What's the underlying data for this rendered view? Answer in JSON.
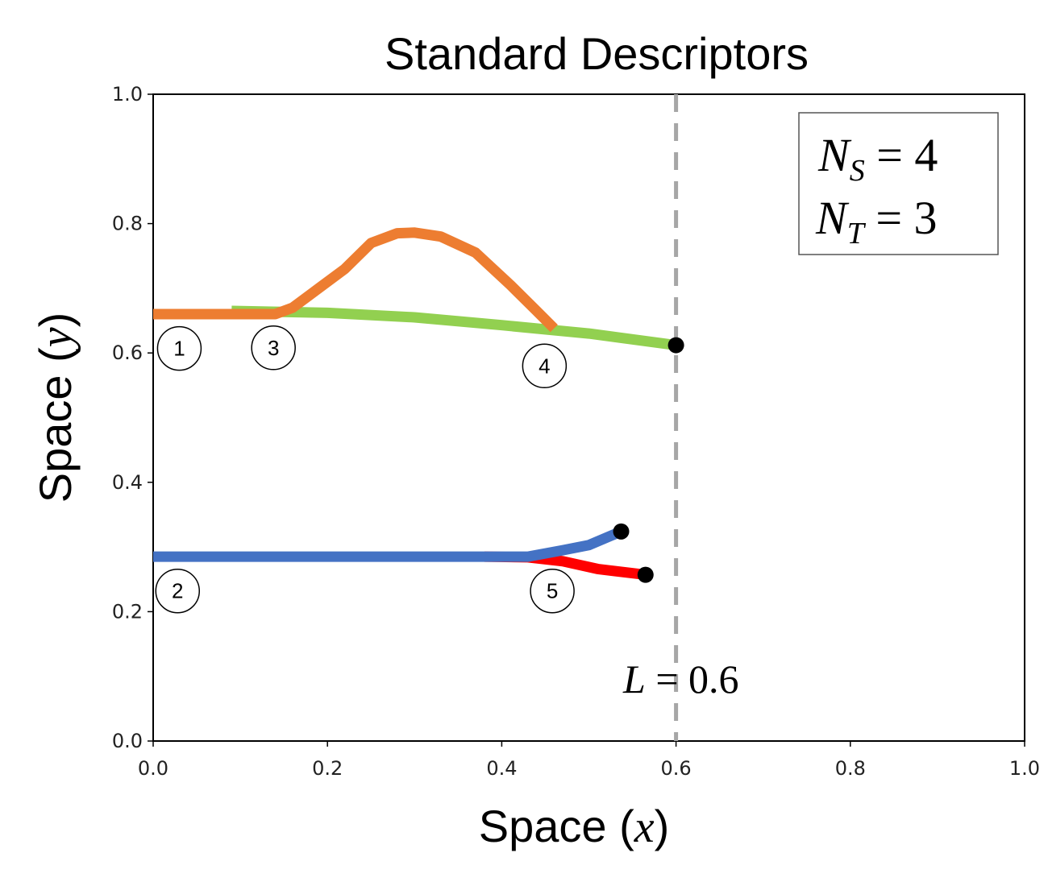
{
  "chart_data": {
    "type": "line",
    "title": "Standard Descriptors",
    "xlabel_text": "Space (",
    "xlabel_var": "x",
    "xlabel_close": ")",
    "ylabel_text": "Space (",
    "ylabel_var": "y",
    "ylabel_close": ")",
    "xlim": [
      0,
      1
    ],
    "ylim": [
      0,
      1
    ],
    "xticks": [
      "0.0",
      "0.2",
      "0.4",
      "0.6",
      "0.8",
      "1.0"
    ],
    "yticks": [
      "0.0",
      "0.2",
      "0.4",
      "0.6",
      "0.8",
      "1.0"
    ],
    "grid": false,
    "series": [
      {
        "color": "#92d050",
        "points": [
          [
            0.09,
            0.665
          ],
          [
            0.2,
            0.662
          ],
          [
            0.3,
            0.655
          ],
          [
            0.4,
            0.643
          ],
          [
            0.5,
            0.63
          ],
          [
            0.6,
            0.612
          ]
        ]
      },
      {
        "color": "#ed7d31",
        "points": [
          [
            0.0,
            0.66
          ],
          [
            0.14,
            0.66
          ],
          [
            0.16,
            0.67
          ],
          [
            0.19,
            0.7
          ],
          [
            0.22,
            0.73
          ],
          [
            0.25,
            0.77
          ],
          [
            0.28,
            0.785
          ],
          [
            0.3,
            0.786
          ],
          [
            0.33,
            0.78
          ],
          [
            0.37,
            0.755
          ],
          [
            0.41,
            0.705
          ],
          [
            0.44,
            0.665
          ],
          [
            0.46,
            0.638
          ]
        ]
      },
      {
        "color": "#ff0000",
        "points": [
          [
            0.38,
            0.285
          ],
          [
            0.43,
            0.284
          ],
          [
            0.47,
            0.278
          ],
          [
            0.51,
            0.266
          ],
          [
            0.565,
            0.257
          ]
        ]
      },
      {
        "color": "#4472c4",
        "points": [
          [
            0.0,
            0.285
          ],
          [
            0.3,
            0.285
          ],
          [
            0.38,
            0.285
          ],
          [
            0.43,
            0.285
          ],
          [
            0.47,
            0.295
          ],
          [
            0.5,
            0.303
          ],
          [
            0.537,
            0.324
          ]
        ]
      }
    ],
    "endpoints": [
      [
        0.6,
        0.612
      ],
      [
        0.537,
        0.324
      ],
      [
        0.565,
        0.257
      ]
    ],
    "markers": [
      {
        "label": "1",
        "x": 0.03,
        "y": 0.607
      },
      {
        "label": "2",
        "x": 0.028,
        "y": 0.232
      },
      {
        "label": "3",
        "x": 0.138,
        "y": 0.608
      },
      {
        "label": "4",
        "x": 0.449,
        "y": 0.58
      },
      {
        "label": "5",
        "x": 0.458,
        "y": 0.232
      }
    ],
    "reference_line": {
      "x": 0.6,
      "color": "#a6a6a6",
      "label_var": "L",
      "label_value": " = 0.6"
    },
    "legend": {
      "placement": "top-right",
      "line1": {
        "var": "N",
        "sub": "S",
        "value": " = 4"
      },
      "line2": {
        "var": "N",
        "sub": "T",
        "value": " = 3"
      }
    }
  }
}
